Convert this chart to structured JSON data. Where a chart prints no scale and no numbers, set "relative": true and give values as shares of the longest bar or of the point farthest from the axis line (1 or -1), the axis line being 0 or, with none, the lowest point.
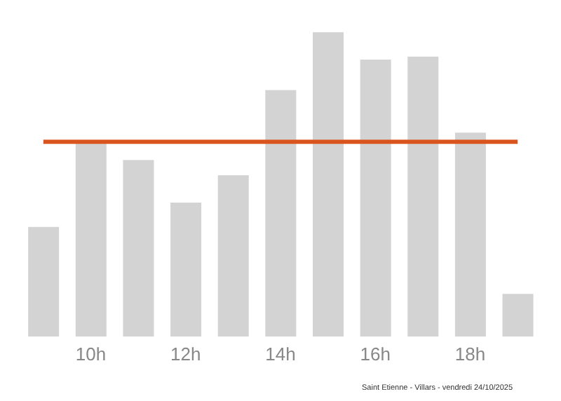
{
  "chart_data": {
    "type": "bar",
    "relative": true,
    "categories": [
      null,
      "10h",
      null,
      "12h",
      null,
      "14h",
      null,
      "16h",
      null,
      "18h",
      null
    ],
    "values": [
      0.36,
      0.64,
      0.58,
      0.44,
      0.53,
      0.81,
      1,
      0.91,
      0.92,
      0.67,
      0.14
    ],
    "color": "#d3d3d3",
    "ref_lines": [
      {
        "axis": "y",
        "value": 0.64,
        "color": "#d9541e"
      }
    ],
    "annotations": [
      "Saint Etienne - Villars - vendredi 24/10/2025"
    ],
    "grid": false,
    "legend": false
  }
}
